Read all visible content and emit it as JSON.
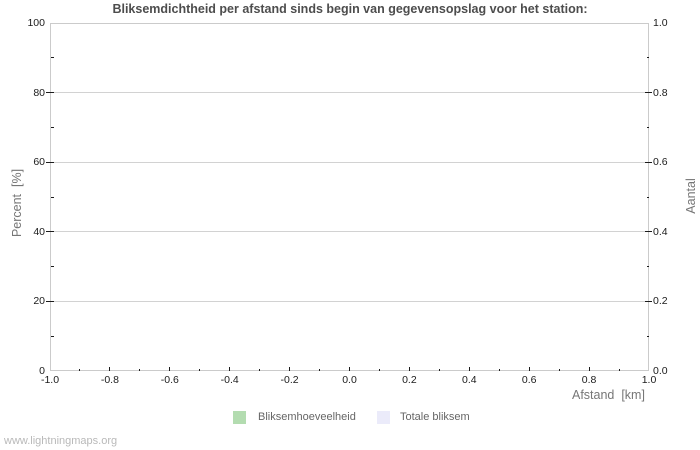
{
  "title": "Bliksemdichtheid per afstand sinds begin van gegevensopslag voor het station:",
  "watermark": "www.lightningmaps.org",
  "chart_data": {
    "type": "bar",
    "title": "Bliksemdichtheid per afstand sinds begin van gegevensopslag voor het station:",
    "plot_empty": true,
    "grid": "horizontal-only",
    "legend_position": "bottom-center",
    "x_axis": {
      "label": "Afstand  [km]",
      "min": -1.0,
      "max": 1.0,
      "major_tick_labels": [
        "-1.0",
        "-0.8",
        "-0.6",
        "-0.4",
        "-0.2",
        "0.0",
        "0.2",
        "0.4",
        "0.6",
        "0.8",
        "1.0"
      ],
      "minor_ticks": [
        -0.9,
        -0.7,
        -0.5,
        -0.3,
        -0.1,
        0.1,
        0.3,
        0.5,
        0.7,
        0.9
      ]
    },
    "y_axis_left": {
      "label": "Percent  [%]",
      "min": 0,
      "max": 100,
      "major_tick_labels": [
        "0",
        "20",
        "40",
        "60",
        "80",
        "100"
      ],
      "minor_ticks": [
        10,
        30,
        50,
        70,
        90
      ],
      "gridline_values": [
        20,
        40,
        60,
        80
      ]
    },
    "y_axis_right": {
      "label": "Aantal",
      "min": 0.0,
      "max": 1.0,
      "major_tick_labels": [
        "0.0",
        "0.2",
        "0.4",
        "0.6",
        "0.8",
        "1.0"
      ],
      "minor_ticks": [
        0.1,
        0.3,
        0.5,
        0.7,
        0.9
      ]
    },
    "series": [
      {
        "name": "Bliksemhoeveelheid",
        "color": "#b3dcb0",
        "x": [],
        "values": []
      },
      {
        "name": "Totale bliksem",
        "color": "#ebebfa",
        "x": [],
        "values": []
      }
    ]
  },
  "legend": {
    "items": [
      {
        "label": "Bliksemhoeveelheid",
        "color": "#b3dcb0"
      },
      {
        "label": "Totale bliksem",
        "color": "#ebebfa"
      }
    ]
  },
  "colors": {
    "background": "#ffffff",
    "frame": "#cbcbcb",
    "grid": "#d2d2d2",
    "tick": "#1b1b1b",
    "tick_label": "#1b1b1b",
    "title": "#4d4d4d",
    "axis_label": "#767676",
    "legend_text": "#666666",
    "watermark": "#b9b9b9"
  }
}
